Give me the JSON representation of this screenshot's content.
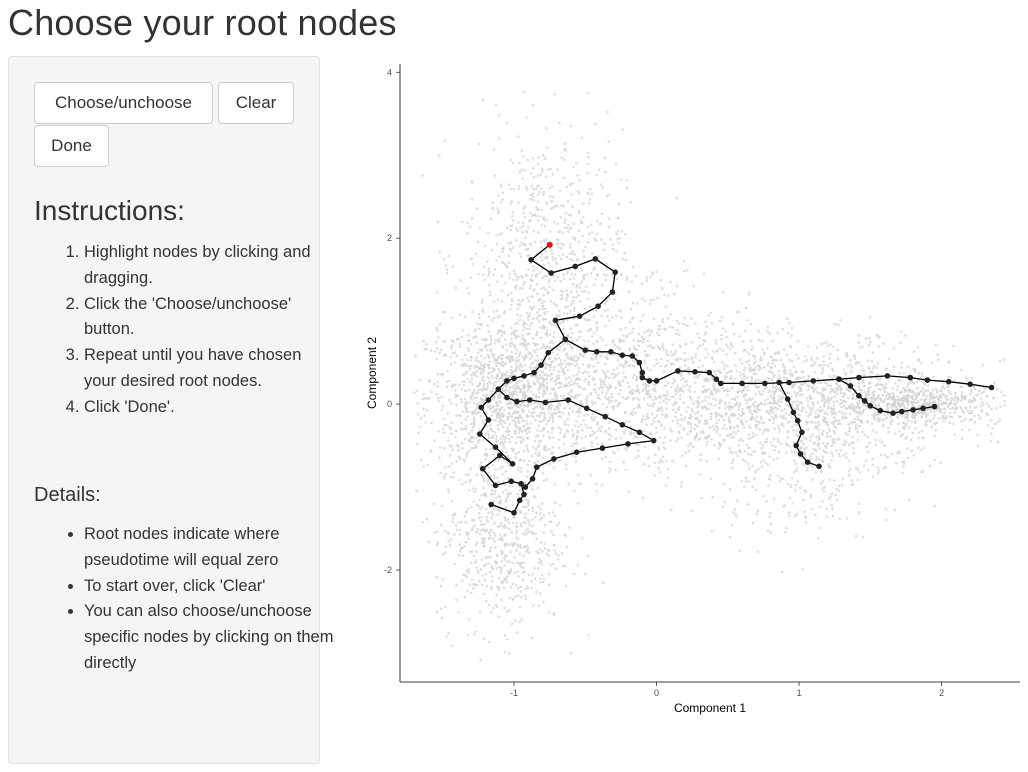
{
  "page": {
    "title": "Choose your root nodes"
  },
  "sidebar": {
    "buttons": {
      "choose_label": "Choose/unchoose",
      "clear_label": "Clear",
      "done_label": "Done"
    },
    "instructions_heading": "Instructions:",
    "instructions": [
      "Highlight nodes by clicking and dragging.",
      "Click the 'Choose/unchoose' button.",
      "Repeat until you have chosen your desired root nodes.",
      "Click 'Done'."
    ],
    "details_heading": "Details:",
    "details": [
      "Root nodes indicate where pseudotime will equal zero",
      "To start over, click 'Clear'",
      "You can also choose/unchoose specific nodes by clicking on them directly"
    ]
  },
  "chart_data": {
    "type": "scatter",
    "xlabel": "Component 1",
    "ylabel": "Component 2",
    "xlim": [
      -1.8,
      2.55
    ],
    "ylim": [
      -3.35,
      4.1
    ],
    "xticks": [
      -1,
      0,
      1,
      2
    ],
    "yticks": [
      -2,
      0,
      2,
      4
    ],
    "grid": false,
    "background_point_color": "#d3d3d3",
    "node_color": "#222222",
    "selected_node_color": "#e01010",
    "selected_nodes": [
      [
        -0.75,
        1.92
      ]
    ],
    "edges": [
      [
        [
          -0.75,
          1.92
        ],
        [
          -0.88,
          1.74
        ],
        [
          -0.74,
          1.58
        ],
        [
          -0.57,
          1.66
        ],
        [
          -0.43,
          1.75
        ],
        [
          -0.29,
          1.59
        ],
        [
          -0.31,
          1.35
        ],
        [
          -0.41,
          1.18
        ],
        [
          -0.54,
          1.06
        ],
        [
          -0.71,
          1.01
        ],
        [
          -0.64,
          0.78
        ],
        [
          -0.76,
          0.62
        ],
        [
          -0.81,
          0.47
        ],
        [
          -0.86,
          0.38
        ],
        [
          -0.93,
          0.34
        ],
        [
          -1.0,
          0.31
        ],
        [
          -1.05,
          0.28
        ],
        [
          -1.11,
          0.18
        ],
        [
          -1.18,
          0.05
        ],
        [
          -1.23,
          -0.04
        ],
        [
          -1.18,
          -0.19
        ],
        [
          -1.24,
          -0.36
        ],
        [
          -1.13,
          -0.52
        ],
        [
          -1.01,
          -0.72
        ],
        [
          -1.1,
          -0.62
        ],
        [
          -1.22,
          -0.78
        ],
        [
          -1.13,
          -0.98
        ],
        [
          -1.02,
          -0.93
        ],
        [
          -0.95,
          -0.96
        ],
        [
          -0.93,
          -1.09
        ],
        [
          -0.96,
          -1.16
        ],
        [
          -1.0,
          -1.31
        ],
        [
          -1.16,
          -1.21
        ]
      ],
      [
        [
          -0.64,
          0.78
        ],
        [
          -0.5,
          0.65
        ],
        [
          -0.42,
          0.63
        ],
        [
          -0.32,
          0.63
        ],
        [
          -0.24,
          0.59
        ],
        [
          -0.17,
          0.58
        ],
        [
          -0.12,
          0.5
        ],
        [
          -0.1,
          0.38
        ],
        [
          -0.1,
          0.32
        ],
        [
          -0.05,
          0.28
        ],
        [
          0.0,
          0.28
        ],
        [
          0.15,
          0.4
        ],
        [
          0.27,
          0.39
        ],
        [
          0.37,
          0.38
        ],
        [
          0.42,
          0.3
        ],
        [
          0.45,
          0.25
        ],
        [
          0.6,
          0.25
        ],
        [
          0.76,
          0.25
        ],
        [
          0.93,
          0.26
        ],
        [
          1.1,
          0.28
        ],
        [
          1.28,
          0.3
        ],
        [
          1.42,
          0.32
        ],
        [
          1.62,
          0.34
        ],
        [
          1.78,
          0.32
        ],
        [
          1.9,
          0.29
        ],
        [
          2.05,
          0.27
        ],
        [
          2.2,
          0.24
        ],
        [
          2.35,
          0.2
        ]
      ],
      [
        [
          -1.11,
          0.18
        ],
        [
          -1.05,
          0.08
        ],
        [
          -0.98,
          0.03
        ],
        [
          -0.89,
          0.05
        ],
        [
          -0.78,
          0.02
        ],
        [
          -0.62,
          0.05
        ],
        [
          -0.49,
          -0.05
        ],
        [
          -0.36,
          -0.15
        ],
        [
          -0.24,
          -0.25
        ],
        [
          -0.12,
          -0.34
        ],
        [
          -0.02,
          -0.44
        ],
        [
          -0.2,
          -0.48
        ],
        [
          -0.38,
          -0.53
        ],
        [
          -0.56,
          -0.58
        ],
        [
          -0.72,
          -0.66
        ],
        [
          -0.84,
          -0.76
        ],
        [
          -0.87,
          -0.9
        ],
        [
          -0.92,
          -1.0
        ]
      ],
      [
        [
          0.86,
          0.26
        ],
        [
          0.92,
          0.06
        ],
        [
          0.96,
          -0.1
        ],
        [
          0.99,
          -0.2
        ],
        [
          1.02,
          -0.34
        ],
        [
          0.98,
          -0.5
        ],
        [
          1.01,
          -0.6
        ],
        [
          1.06,
          -0.7
        ],
        [
          1.14,
          -0.75
        ]
      ],
      [
        [
          1.28,
          0.3
        ],
        [
          1.36,
          0.22
        ],
        [
          1.42,
          0.1
        ],
        [
          1.46,
          0.04
        ],
        [
          1.5,
          -0.02
        ],
        [
          1.57,
          -0.08
        ],
        [
          1.66,
          -0.11
        ],
        [
          1.72,
          -0.09
        ],
        [
          1.8,
          -0.07
        ],
        [
          1.87,
          -0.05
        ],
        [
          1.95,
          -0.03
        ]
      ]
    ]
  }
}
